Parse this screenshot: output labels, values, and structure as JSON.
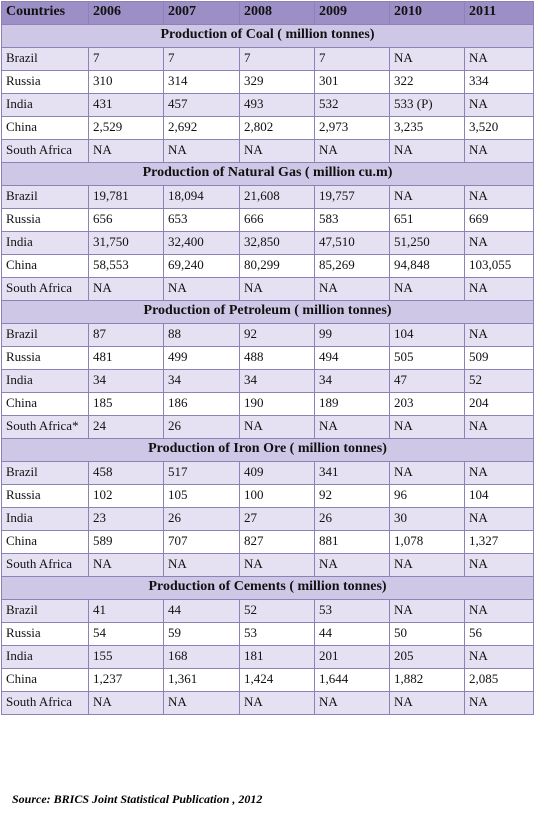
{
  "header": [
    "Countries",
    "2006",
    "2007",
    "2008",
    "2009",
    "2010",
    "2011"
  ],
  "sections": [
    {
      "title": "Production of Coal ( million tonnes)",
      "rows": [
        [
          "Brazil",
          "7",
          "7",
          "7",
          "7",
          "NA",
          "NA"
        ],
        [
          "Russia",
          "310",
          "314",
          "329",
          "301",
          "322",
          "334"
        ],
        [
          "India",
          "431",
          "457",
          "493",
          "532",
          "533 (P)",
          "NA"
        ],
        [
          "China",
          "2,529",
          "2,692",
          "2,802",
          "2,973",
          "3,235",
          "3,520"
        ],
        [
          "South Africa",
          "NA",
          "NA",
          "NA",
          "NA",
          "NA",
          "NA"
        ]
      ]
    },
    {
      "title": "Production of Natural  Gas ( million cu.m)",
      "rows": [
        [
          "Brazil",
          "19,781",
          "18,094",
          "21,608",
          "19,757",
          "NA",
          "NA"
        ],
        [
          "Russia",
          "656",
          "653",
          "666",
          "583",
          "651",
          "669"
        ],
        [
          "India",
          "31,750",
          "32,400",
          "32,850",
          "47,510",
          "51,250",
          "NA"
        ],
        [
          "China",
          "58,553",
          "69,240",
          "80,299",
          "85,269",
          "94,848",
          "103,055"
        ],
        [
          "South Africa",
          "NA",
          "NA",
          "NA",
          "NA",
          "NA",
          "NA"
        ]
      ]
    },
    {
      "title": "Production of Petroleum ( million tonnes)",
      "rows": [
        [
          "Brazil",
          "87",
          "88",
          "92",
          "99",
          "104",
          "NA"
        ],
        [
          "Russia",
          "481",
          "499",
          "488",
          "494",
          "505",
          "509"
        ],
        [
          "India",
          "34",
          "34",
          "34",
          "34",
          "47",
          "52"
        ],
        [
          "China",
          "185",
          "186",
          "190",
          "189",
          "203",
          "204"
        ],
        [
          "South Africa*",
          "24",
          "26",
          "NA",
          "NA",
          "NA",
          "NA"
        ]
      ]
    },
    {
      "title": "Production of Iron Ore ( million tonnes)",
      "rows": [
        [
          "Brazil",
          "458",
          "517",
          "409",
          "341",
          "NA",
          "NA"
        ],
        [
          "Russia",
          "102",
          "105",
          "100",
          "92",
          "96",
          "104"
        ],
        [
          "India",
          "23",
          "26",
          "27",
          "26",
          "30",
          "NA"
        ],
        [
          "China",
          "589",
          "707",
          "827",
          "881",
          "1,078",
          "1,327"
        ],
        [
          "South Africa",
          "NA",
          "NA",
          "NA",
          "NA",
          "NA",
          "NA"
        ]
      ]
    },
    {
      "title": "Production of  Cements ( million tonnes)",
      "rows": [
        [
          "Brazil",
          "41",
          "44",
          "52",
          "53",
          "NA",
          "NA"
        ],
        [
          "Russia",
          "54",
          "59",
          "53",
          "44",
          "50",
          "56"
        ],
        [
          "India",
          "155",
          "168",
          "181",
          "201",
          "205",
          "NA"
        ],
        [
          "China",
          "1,237",
          "1,361",
          "1,424",
          "1,644",
          "1,882",
          "2,085"
        ],
        [
          "South Africa",
          "NA",
          "NA",
          "NA",
          "NA",
          "NA",
          "NA"
        ]
      ]
    }
  ],
  "source": "Source: BRICS Joint Statistical Publication , 2012"
}
